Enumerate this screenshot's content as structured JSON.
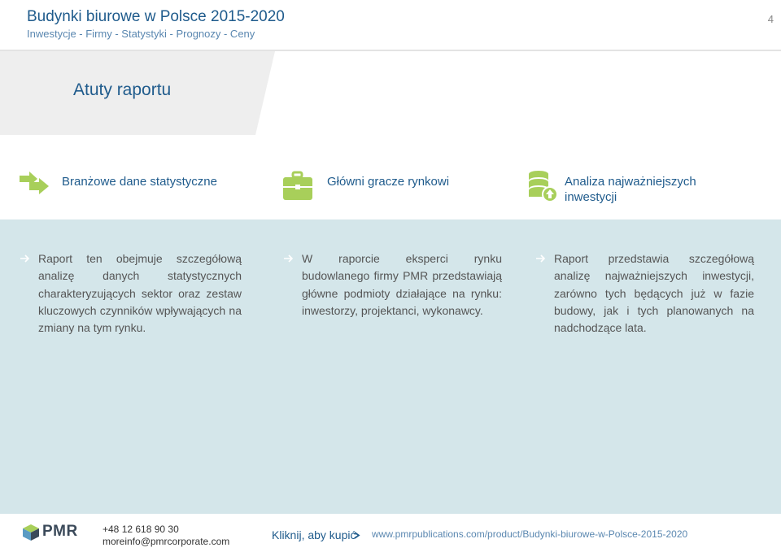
{
  "header": {
    "title": "Budynki biurowe w Polsce 2015-2020",
    "subtitle": "Inwestycje - Firmy - Statystyki - Prognozy - Ceny",
    "page_number": "4"
  },
  "banner": {
    "title": "Atuty raportu"
  },
  "features": [
    {
      "label": "Branżowe dane statystyczne",
      "icon": "arrows-icon"
    },
    {
      "label": "Główni gracze rynkowi",
      "icon": "briefcase-icon"
    },
    {
      "label_line1": "Analiza najważniejszych",
      "label_line2": "inwestycji",
      "icon": "coins-icon"
    }
  ],
  "columns": [
    {
      "text": "Raport ten obejmuje szczegółową analizę danych statystycznych charakteryzujących sektor oraz zestaw kluczowych czynników wpływających na zmiany na tym rynku."
    },
    {
      "text": "W raporcie eksperci rynku budowlanego firmy PMR przedstawiają główne podmioty działające na rynku: inwestorzy, projektanci, wykonawcy."
    },
    {
      "text": "Raport przedstawia szczegółową analizę najważniejszych inwestycji, zarówno tych będących już w fazie budowy, jak i tych planowanych na nadchodzące lata."
    }
  ],
  "footer": {
    "logo_text": "PMR",
    "phone": "+48 12 618 90 30",
    "email": "moreinfo@pmrcorporate.com",
    "buy_label": "Kliknij, aby kupić",
    "url": "www.pmrpublications.com/product/Budynki-biurowe-w-Polsce-2015-2020"
  },
  "colors": {
    "accent": "#1f5b8c",
    "icon_green": "#a8cf5a",
    "panel": "#d4e6ea",
    "banner": "#eeeeee"
  }
}
